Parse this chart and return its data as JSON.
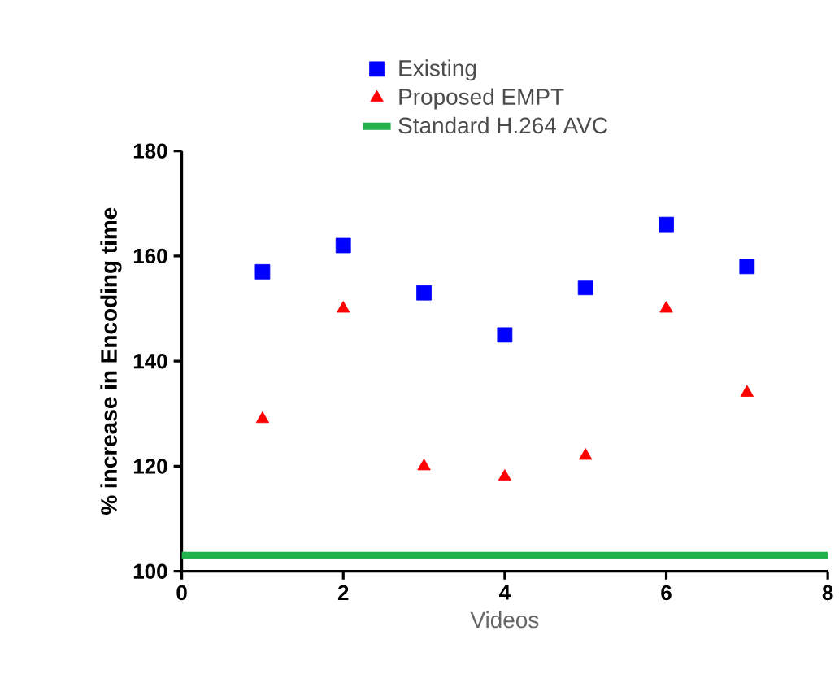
{
  "chart_data": {
    "type": "scatter",
    "xlabel": "Videos",
    "ylabel": "% increase in Encoding time",
    "xlim": [
      0,
      8
    ],
    "ylim": [
      100,
      180
    ],
    "xticks": [
      0,
      2,
      4,
      6,
      8
    ],
    "yticks": [
      100,
      120,
      140,
      160,
      180
    ],
    "legend": "top",
    "grid": false,
    "series": [
      {
        "name": "Existing",
        "color": "#0000ff",
        "marker": "square",
        "x": [
          1,
          2,
          3,
          4,
          5,
          6,
          7
        ],
        "values": [
          157,
          162,
          153,
          145,
          154,
          166,
          158
        ]
      },
      {
        "name": "Proposed EMPT",
        "color": "#ff0000",
        "marker": "triangle",
        "x": [
          1,
          2,
          3,
          4,
          5,
          6,
          7
        ],
        "values": [
          129,
          150,
          120,
          118,
          122,
          150,
          134
        ]
      },
      {
        "name": "Standard H.264 AVC",
        "type": "line",
        "color": "#22b14c",
        "marker": "none",
        "x": [
          0,
          8
        ],
        "values": [
          103,
          103
        ]
      }
    ]
  }
}
